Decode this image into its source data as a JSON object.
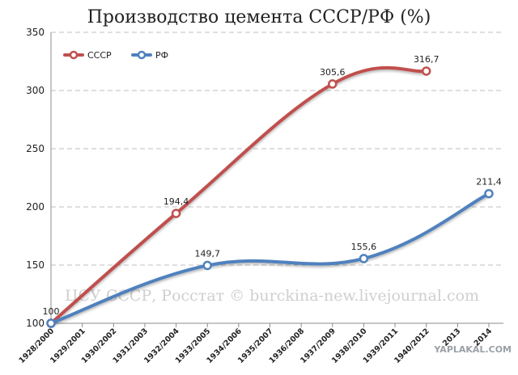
{
  "chart_data": {
    "type": "line",
    "title": "Производство цемента СССР/РФ (%)",
    "categories": [
      "1928/2000",
      "1929/2001",
      "1930/2002",
      "1931/2003",
      "1932/2004",
      "1933/2005",
      "1934/2006",
      "1935/2007",
      "1936/2008",
      "1937/2009",
      "1938/2010",
      "1939/2011",
      "1940/2012",
      "2013",
      "2014"
    ],
    "ylim": [
      100,
      350
    ],
    "yticks": [
      100,
      150,
      200,
      250,
      300,
      350
    ],
    "grid": true,
    "legend": "top-left",
    "series": [
      {
        "name": "СССР",
        "color": "#c0504d",
        "points": [
          {
            "category": "1928/2000",
            "value": 100,
            "label": "100"
          },
          {
            "category": "1932/2004",
            "value": 194.4,
            "label": "194,4"
          },
          {
            "category": "1937/2009",
            "value": 305.6,
            "label": "305,6"
          },
          {
            "category": "1940/2012",
            "value": 316.7,
            "label": "316,7"
          }
        ]
      },
      {
        "name": "РФ",
        "color": "#4f81bd",
        "points": [
          {
            "category": "1928/2000",
            "value": 100,
            "label": ""
          },
          {
            "category": "1933/2005",
            "value": 149.7,
            "label": "149,7"
          },
          {
            "category": "1938/2010",
            "value": 155.6,
            "label": "155,6"
          },
          {
            "category": "2014",
            "value": 211.4,
            "label": "211,4"
          }
        ]
      }
    ]
  },
  "watermark": "ЦСУ СССР, Росстат © burckina-new.livejournal.com",
  "corner_mark": "YAPLAKAL.COM"
}
